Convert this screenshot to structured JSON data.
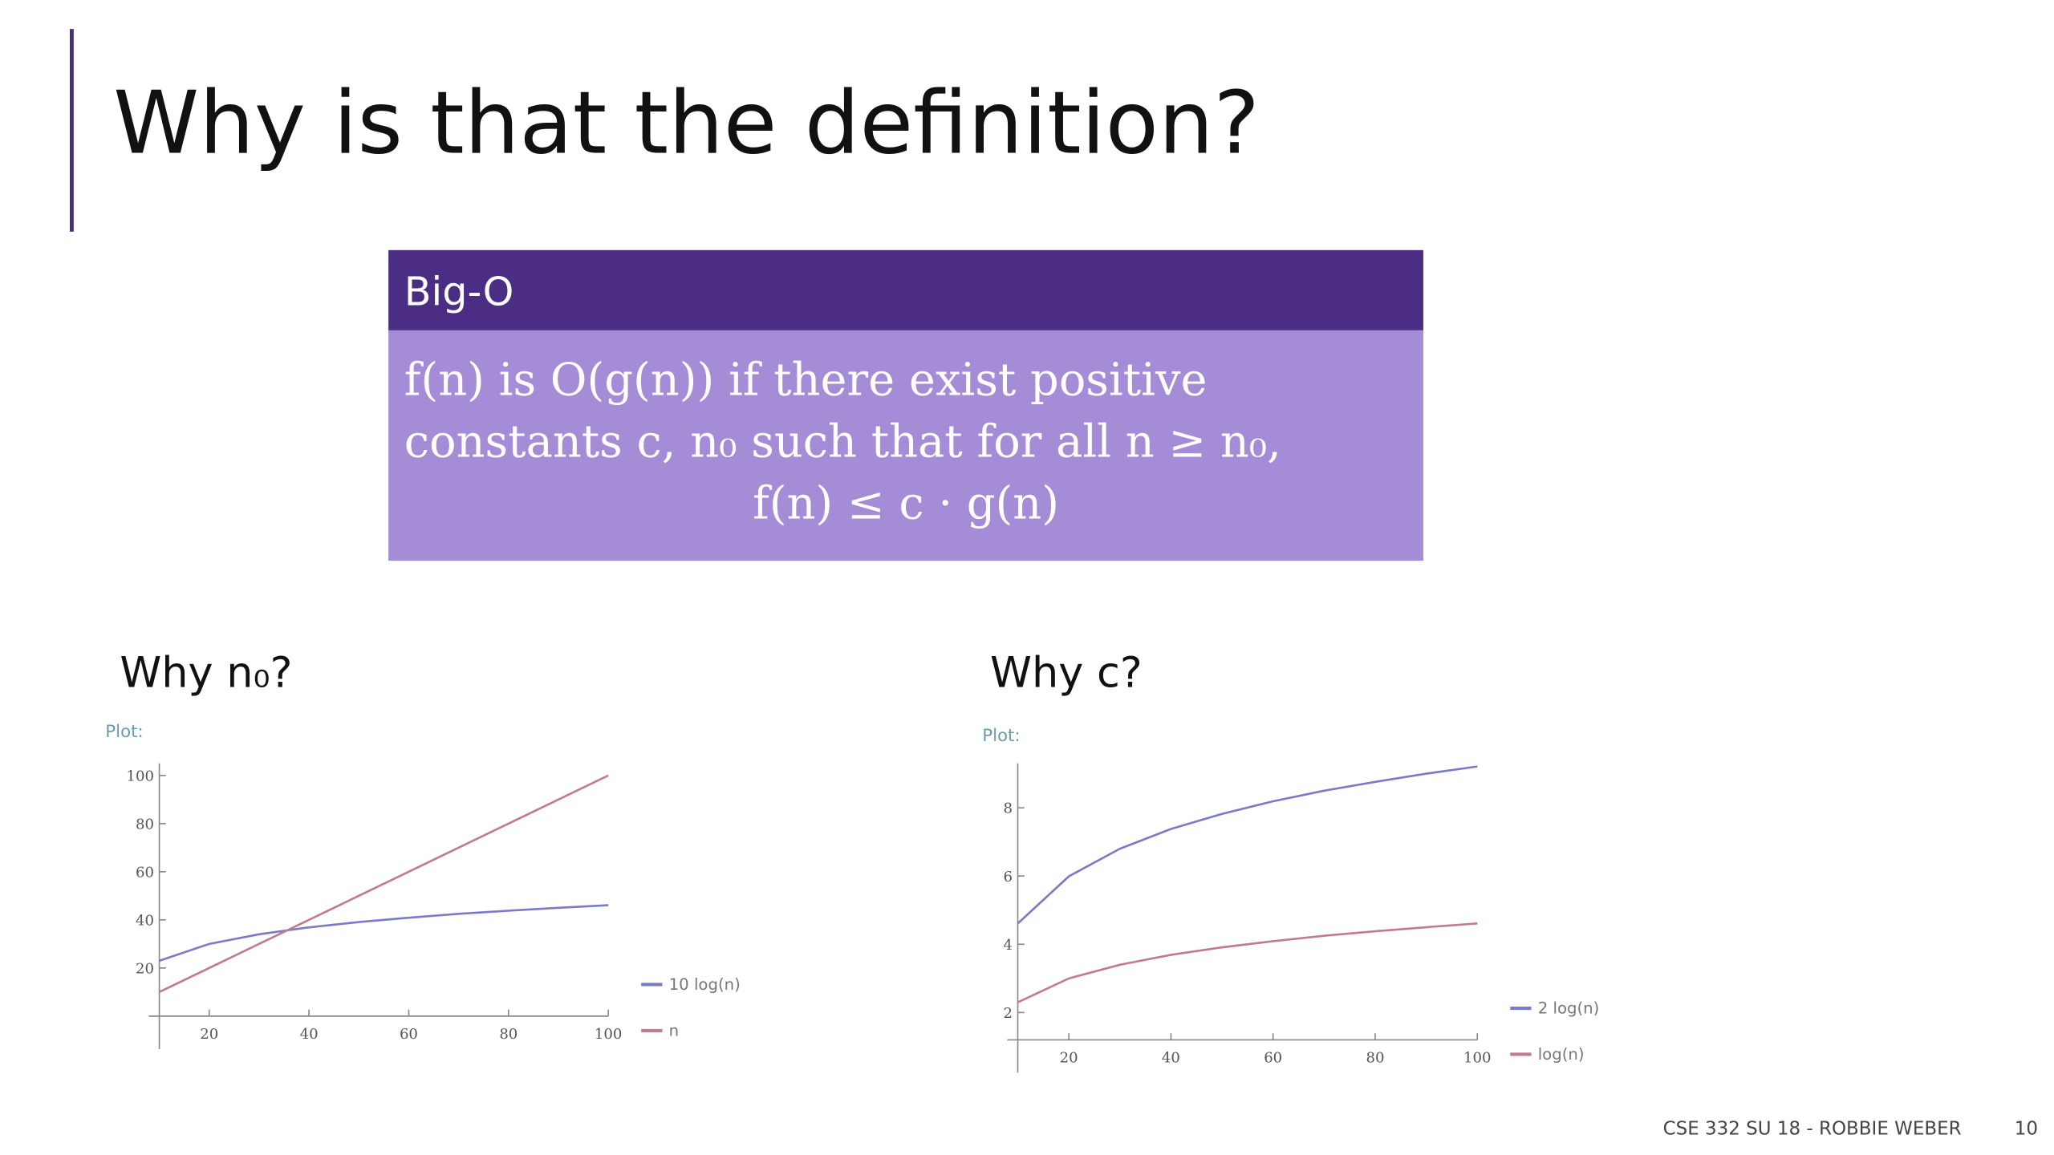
{
  "title": "Why is that the definition?",
  "definition": {
    "header": "Big-O",
    "lines": [
      "f(n) is O(g(n)) if there exist positive",
      "constants c, n₀ such that for all n ≥ n₀,",
      "f(n) ≤ c · g(n)"
    ]
  },
  "footer": {
    "course": "CSE 332 SU 18 - ROBBIE WEBER",
    "page": "10"
  },
  "chart_data": [
    {
      "type": "line",
      "title": "Why n₀?",
      "subtitle": "Plot:",
      "x": [
        10,
        20,
        30,
        40,
        50,
        60,
        70,
        80,
        90,
        100
      ],
      "series": [
        {
          "name": "10 log(n)",
          "color": "#7a7ac8",
          "values": [
            23.0,
            30.0,
            34.0,
            36.9,
            39.1,
            40.9,
            42.5,
            43.8,
            45.0,
            46.1
          ]
        },
        {
          "name": "n",
          "color": "#c27a90",
          "values": [
            10,
            20,
            30,
            40,
            50,
            60,
            70,
            80,
            90,
            100
          ]
        }
      ],
      "xlim": [
        10,
        100
      ],
      "ylim": [
        0,
        105
      ],
      "xticks": [
        20,
        40,
        60,
        80,
        100
      ],
      "yticks": [
        20,
        40,
        60,
        80,
        100
      ],
      "legend": "right"
    },
    {
      "type": "line",
      "title": "Why c?",
      "subtitle": "Plot:",
      "x": [
        10,
        20,
        30,
        40,
        50,
        60,
        70,
        80,
        90,
        100
      ],
      "series": [
        {
          "name": "2 log(n)",
          "color": "#7a7ac8",
          "values": [
            4.61,
            5.99,
            6.8,
            7.38,
            7.82,
            8.19,
            8.5,
            8.76,
            9.0,
            9.21
          ]
        },
        {
          "name": "log(n)",
          "color": "#c27a90",
          "values": [
            2.3,
            3.0,
            3.4,
            3.69,
            3.91,
            4.09,
            4.25,
            4.38,
            4.5,
            4.61
          ]
        }
      ],
      "xlim": [
        10,
        100
      ],
      "ylim": [
        1.2,
        9.3
      ],
      "xticks": [
        20,
        40,
        60,
        80,
        100
      ],
      "yticks": [
        2,
        4,
        6,
        8
      ],
      "legend": "right"
    }
  ]
}
